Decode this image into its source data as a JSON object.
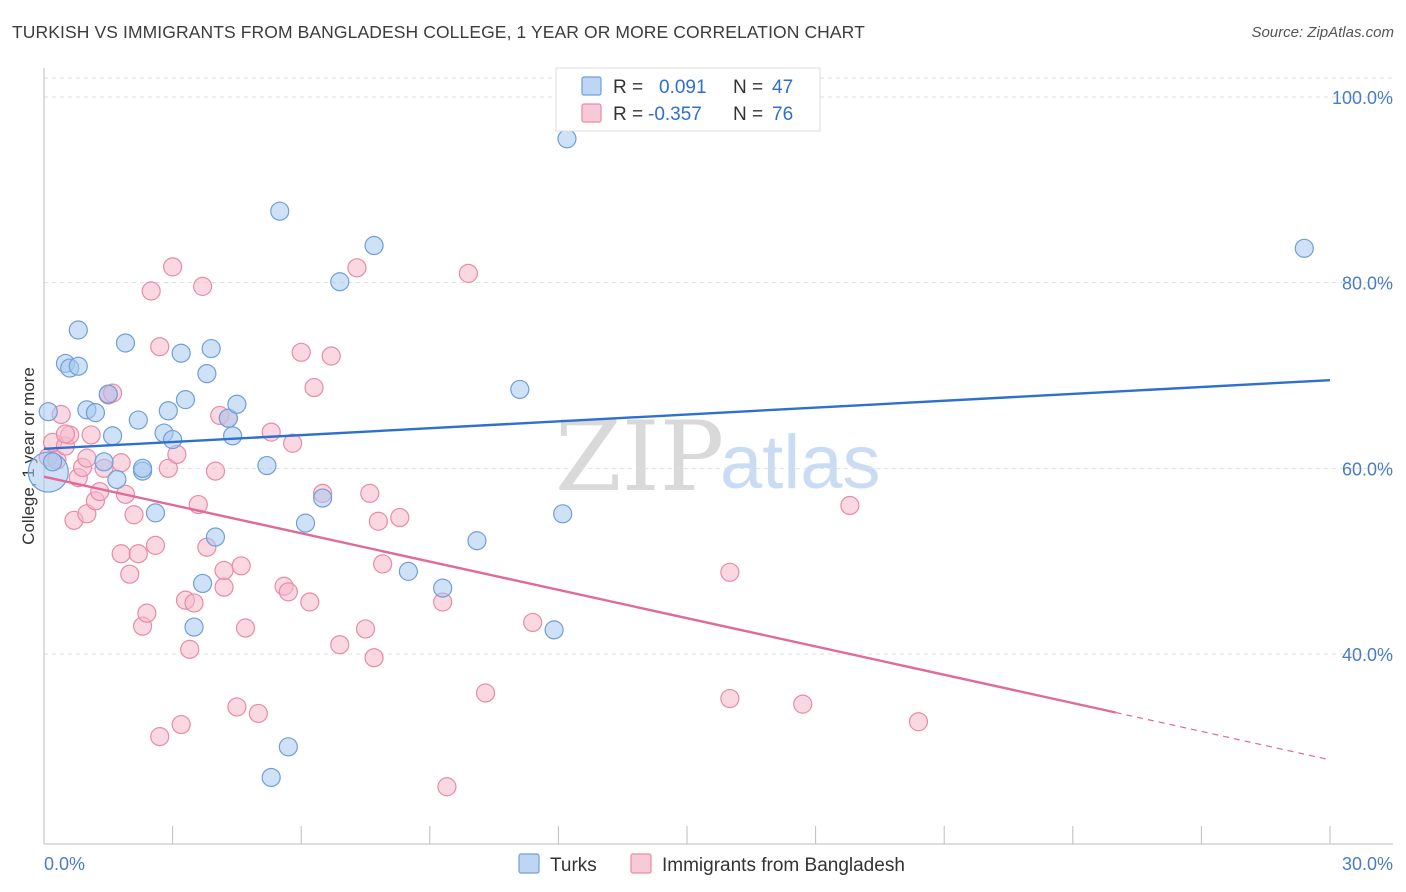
{
  "title": "TURKISH VS IMMIGRANTS FROM BANGLADESH COLLEGE, 1 YEAR OR MORE CORRELATION CHART",
  "source": "Source: ZipAtlas.com",
  "watermark": {
    "zip": "ZIP",
    "atlas": "atlas"
  },
  "legend": {
    "r_label": "R =",
    "n_label": "N =",
    "entries": [
      {
        "r": "0.091",
        "n": "47",
        "color": "#a8c8f0"
      },
      {
        "r": "-0.357",
        "n": "76",
        "color": "#f6b8cb"
      }
    ]
  },
  "colors": {
    "turks_fill": "#a8c8f0",
    "turks_stroke": "#6f9fd8",
    "turks_line": "#2e6fd0",
    "bang_fill": "#f6b8cb",
    "bang_stroke": "#e98aa8",
    "bang_line": "#e06a98"
  },
  "chart_data": {
    "type": "scatter",
    "xlabel": "",
    "ylabel": "College, 1 year or more",
    "xlim": [
      0,
      30
    ],
    "ylim": [
      18,
      104
    ],
    "x_ticks": [
      "0.0%",
      "30.0%"
    ],
    "y_ticks": [
      {
        "value": 100,
        "label": "100.0%"
      },
      {
        "value": 80,
        "label": "80.0%"
      },
      {
        "value": 60,
        "label": "60.0%"
      },
      {
        "value": 40,
        "label": "40.0%"
      }
    ],
    "grid": "horizontal dashed",
    "legend_position": "bottom",
    "series": [
      {
        "name": "Turks",
        "r": 0.091,
        "n": 47,
        "trend": {
          "x": [
            0,
            30
          ],
          "y": [
            62.1,
            69.5
          ]
        },
        "points": [
          [
            0.1,
            59.6
          ],
          [
            0.1,
            66.1
          ],
          [
            0.2,
            60.7
          ],
          [
            0.5,
            71.3
          ],
          [
            0.6,
            70.8
          ],
          [
            0.8,
            71.0
          ],
          [
            1.0,
            66.3
          ],
          [
            1.2,
            66.0
          ],
          [
            0.8,
            74.9
          ],
          [
            1.4,
            60.7
          ],
          [
            1.5,
            68.0
          ],
          [
            1.7,
            58.8
          ],
          [
            1.6,
            63.5
          ],
          [
            1.9,
            73.5
          ],
          [
            2.2,
            65.2
          ],
          [
            2.3,
            59.7
          ],
          [
            2.3,
            60.0
          ],
          [
            2.6,
            55.2
          ],
          [
            2.8,
            63.8
          ],
          [
            2.9,
            66.2
          ],
          [
            3.0,
            63.1
          ],
          [
            3.2,
            72.4
          ],
          [
            3.3,
            67.4
          ],
          [
            3.5,
            42.9
          ],
          [
            3.7,
            47.6
          ],
          [
            3.8,
            70.2
          ],
          [
            3.9,
            72.9
          ],
          [
            4.0,
            52.6
          ],
          [
            4.3,
            65.4
          ],
          [
            4.4,
            63.5
          ],
          [
            4.5,
            66.9
          ],
          [
            5.2,
            60.3
          ],
          [
            5.3,
            26.7
          ],
          [
            5.5,
            87.7
          ],
          [
            5.7,
            30.0
          ],
          [
            6.1,
            54.1
          ],
          [
            6.5,
            56.8
          ],
          [
            6.9,
            80.1
          ],
          [
            7.7,
            84.0
          ],
          [
            8.5,
            48.9
          ],
          [
            9.3,
            47.1
          ],
          [
            10.1,
            52.2
          ],
          [
            11.1,
            68.5
          ],
          [
            11.9,
            42.6
          ],
          [
            12.1,
            55.1
          ],
          [
            12.2,
            95.5
          ],
          [
            29.4,
            83.7
          ]
        ]
      },
      {
        "name": "Immigrants from Bangladesh",
        "r": -0.357,
        "n": 76,
        "trend": {
          "x": [
            0,
            25
          ],
          "y": [
            59.1,
            33.7
          ]
        },
        "trend_dashed": {
          "x": [
            25,
            30
          ],
          "y": [
            33.7,
            28.6
          ]
        },
        "points": [
          [
            0.1,
            61.2
          ],
          [
            0.2,
            62.8
          ],
          [
            0.3,
            60.9
          ],
          [
            0.4,
            65.8
          ],
          [
            0.5,
            62.4
          ],
          [
            0.6,
            63.6
          ],
          [
            0.7,
            54.4
          ],
          [
            0.8,
            59.0
          ],
          [
            0.9,
            60.1
          ],
          [
            1.0,
            55.1
          ],
          [
            1.0,
            61.1
          ],
          [
            1.1,
            63.6
          ],
          [
            1.2,
            56.5
          ],
          [
            1.3,
            57.5
          ],
          [
            1.4,
            60.0
          ],
          [
            1.5,
            67.9
          ],
          [
            1.6,
            68.1
          ],
          [
            1.8,
            60.6
          ],
          [
            1.8,
            50.8
          ],
          [
            1.9,
            57.2
          ],
          [
            2.0,
            48.6
          ],
          [
            2.1,
            55.0
          ],
          [
            2.2,
            50.8
          ],
          [
            2.3,
            43.0
          ],
          [
            2.4,
            44.4
          ],
          [
            2.5,
            79.1
          ],
          [
            2.6,
            51.7
          ],
          [
            2.7,
            73.1
          ],
          [
            2.7,
            31.1
          ],
          [
            2.9,
            60.0
          ],
          [
            3.0,
            81.7
          ],
          [
            3.1,
            61.5
          ],
          [
            3.2,
            32.4
          ],
          [
            3.3,
            45.8
          ],
          [
            3.4,
            40.5
          ],
          [
            3.5,
            45.5
          ],
          [
            3.6,
            56.1
          ],
          [
            3.7,
            79.6
          ],
          [
            3.8,
            51.5
          ],
          [
            4.0,
            59.7
          ],
          [
            4.1,
            65.7
          ],
          [
            4.2,
            47.2
          ],
          [
            4.2,
            49.0
          ],
          [
            4.3,
            65.4
          ],
          [
            4.5,
            34.3
          ],
          [
            4.6,
            49.5
          ],
          [
            4.7,
            42.8
          ],
          [
            5.0,
            33.6
          ],
          [
            5.3,
            63.9
          ],
          [
            5.6,
            47.3
          ],
          [
            5.7,
            46.7
          ],
          [
            5.8,
            62.7
          ],
          [
            6.0,
            72.5
          ],
          [
            6.2,
            45.6
          ],
          [
            6.3,
            68.7
          ],
          [
            6.5,
            57.3
          ],
          [
            6.7,
            72.1
          ],
          [
            6.9,
            41.0
          ],
          [
            7.3,
            81.6
          ],
          [
            7.5,
            42.7
          ],
          [
            7.6,
            57.3
          ],
          [
            7.7,
            39.6
          ],
          [
            7.8,
            54.3
          ],
          [
            7.9,
            49.7
          ],
          [
            8.3,
            54.7
          ],
          [
            9.3,
            45.6
          ],
          [
            9.4,
            25.7
          ],
          [
            9.9,
            81.0
          ],
          [
            10.3,
            35.8
          ],
          [
            11.4,
            43.4
          ],
          [
            16.0,
            48.8
          ],
          [
            16.0,
            35.2
          ],
          [
            17.7,
            34.6
          ],
          [
            18.8,
            56.0
          ],
          [
            20.4,
            32.7
          ],
          [
            0.5,
            63.7
          ]
        ]
      }
    ]
  }
}
